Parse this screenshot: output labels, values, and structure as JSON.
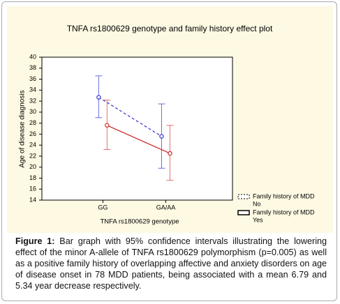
{
  "chart_data": {
    "type": "line",
    "title": "TNFA rs1800629 genotype and family history effect plot",
    "x_label": "TNFA rs1800629 genotype",
    "y_label": "Age of disease diagnosis",
    "categories": [
      "GG",
      "GA/AA"
    ],
    "ylim": [
      14,
      40
    ],
    "yticks": [
      14,
      16,
      18,
      20,
      22,
      24,
      26,
      28,
      30,
      32,
      34,
      36,
      38,
      40
    ],
    "series": [
      {
        "name": "Family history of MDD",
        "level": "No",
        "color": "#3333cc",
        "dashed": true,
        "values": [
          32.7,
          25.6
        ],
        "ci_low": [
          29,
          19.8
        ],
        "ci_high": [
          36.6,
          31.5
        ]
      },
      {
        "name": "Family history of MDD",
        "level": "Yes",
        "color": "#cc2222",
        "dashed": false,
        "values": [
          27.6,
          22.5
        ],
        "ci_low": [
          23.2,
          17.6
        ],
        "ci_high": [
          32.2,
          27.6
        ]
      }
    ]
  },
  "caption": {
    "label": "Figure 1:",
    "text": "Bar graph with 95% confidence intervals illustrating the lowering effect of the minor A-allele of TNFA rs1800629 polymorphism (p=0.005) as well as a positive family history of overlapping affective and anxiety disorders on age of disease onset in 78 MDD patients, being associated with a mean 6.79 and 5.34 year decrease respectively."
  }
}
